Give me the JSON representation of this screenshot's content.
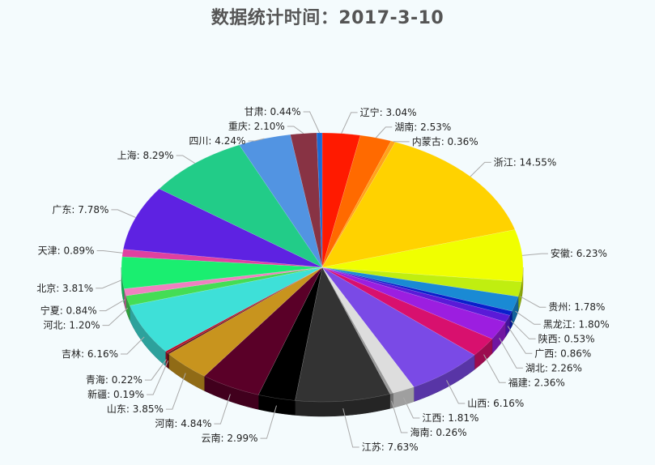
{
  "chart_data": {
    "type": "pie",
    "title": "数据统计时间：2017-3-10",
    "label_separator": ": ",
    "slices": [
      {
        "name": "辽宁",
        "value": 3.04,
        "label": "3.04%",
        "color": "#ff1a00"
      },
      {
        "name": "湖南",
        "value": 2.53,
        "label": "2.53%",
        "color": "#ff6a00"
      },
      {
        "name": "内蒙古",
        "value": 0.36,
        "label": "0.36%",
        "color": "#ffa31a"
      },
      {
        "name": "浙江",
        "value": 14.55,
        "label": "14.55%",
        "color": "#ffd200"
      },
      {
        "name": "安徽",
        "value": 6.23,
        "label": "6.23%",
        "color": "#f0ff00"
      },
      {
        "name": "贵州",
        "value": 1.78,
        "label": "1.78%",
        "color": "#c0ee10"
      },
      {
        "name": "黑龙江",
        "value": 1.8,
        "label": "1.80%",
        "color": "#1a8ad4"
      },
      {
        "name": "陕西",
        "value": 0.53,
        "label": "0.53%",
        "color": "#0a1ecc"
      },
      {
        "name": "广西",
        "value": 0.86,
        "label": "0.86%",
        "color": "#5a1ad8"
      },
      {
        "name": "湖北",
        "value": 2.26,
        "label": "2.26%",
        "color": "#9c1ee0"
      },
      {
        "name": "福建",
        "value": 2.36,
        "label": "2.36%",
        "color": "#d8106e"
      },
      {
        "name": "山西",
        "value": 6.16,
        "label": "6.16%",
        "color": "#7a4ae6"
      },
      {
        "name": "江西",
        "value": 1.81,
        "label": "1.81%",
        "color": "#dddddd"
      },
      {
        "name": "海南",
        "value": 0.26,
        "label": "0.26%",
        "color": "#999999"
      },
      {
        "name": "江苏",
        "value": 7.63,
        "label": "7.63%",
        "color": "#333333"
      },
      {
        "name": "云南",
        "value": 2.99,
        "label": "2.99%",
        "color": "#000000"
      },
      {
        "name": "河南",
        "value": 4.84,
        "label": "4.84%",
        "color": "#5a0028"
      },
      {
        "name": "山东",
        "value": 3.85,
        "label": "3.85%",
        "color": "#c8941e"
      },
      {
        "name": "新疆",
        "value": 0.19,
        "label": "0.19%",
        "color": "#6a1a1a"
      },
      {
        "name": "青海",
        "value": 0.22,
        "label": "0.22%",
        "color": "#b8102a"
      },
      {
        "name": "吉林",
        "value": 6.16,
        "label": "6.16%",
        "color": "#3ee0d8"
      },
      {
        "name": "河北",
        "value": 1.2,
        "label": "1.20%",
        "color": "#44dd55"
      },
      {
        "name": "宁夏",
        "value": 0.84,
        "label": "0.84%",
        "color": "#f080c0"
      },
      {
        "name": "北京",
        "value": 3.81,
        "label": "3.81%",
        "color": "#1aee70"
      },
      {
        "name": "天津",
        "value": 0.89,
        "label": "0.89%",
        "color": "#e040a0"
      },
      {
        "name": "广东",
        "value": 7.78,
        "label": "7.78%",
        "color": "#5e22e2"
      },
      {
        "name": "上海",
        "value": 8.29,
        "label": "8.29%",
        "color": "#22cc88"
      },
      {
        "name": "四川",
        "value": 4.24,
        "label": "4.24%",
        "color": "#5294e2"
      },
      {
        "name": "重庆",
        "value": 2.1,
        "label": "2.10%",
        "color": "#883344"
      },
      {
        "name": "甘肃",
        "value": 0.44,
        "label": "0.44%",
        "color": "#1a6ad4"
      }
    ],
    "legend": "none",
    "data_labels": "outside-with-leader-lines",
    "pie_3d": true
  }
}
